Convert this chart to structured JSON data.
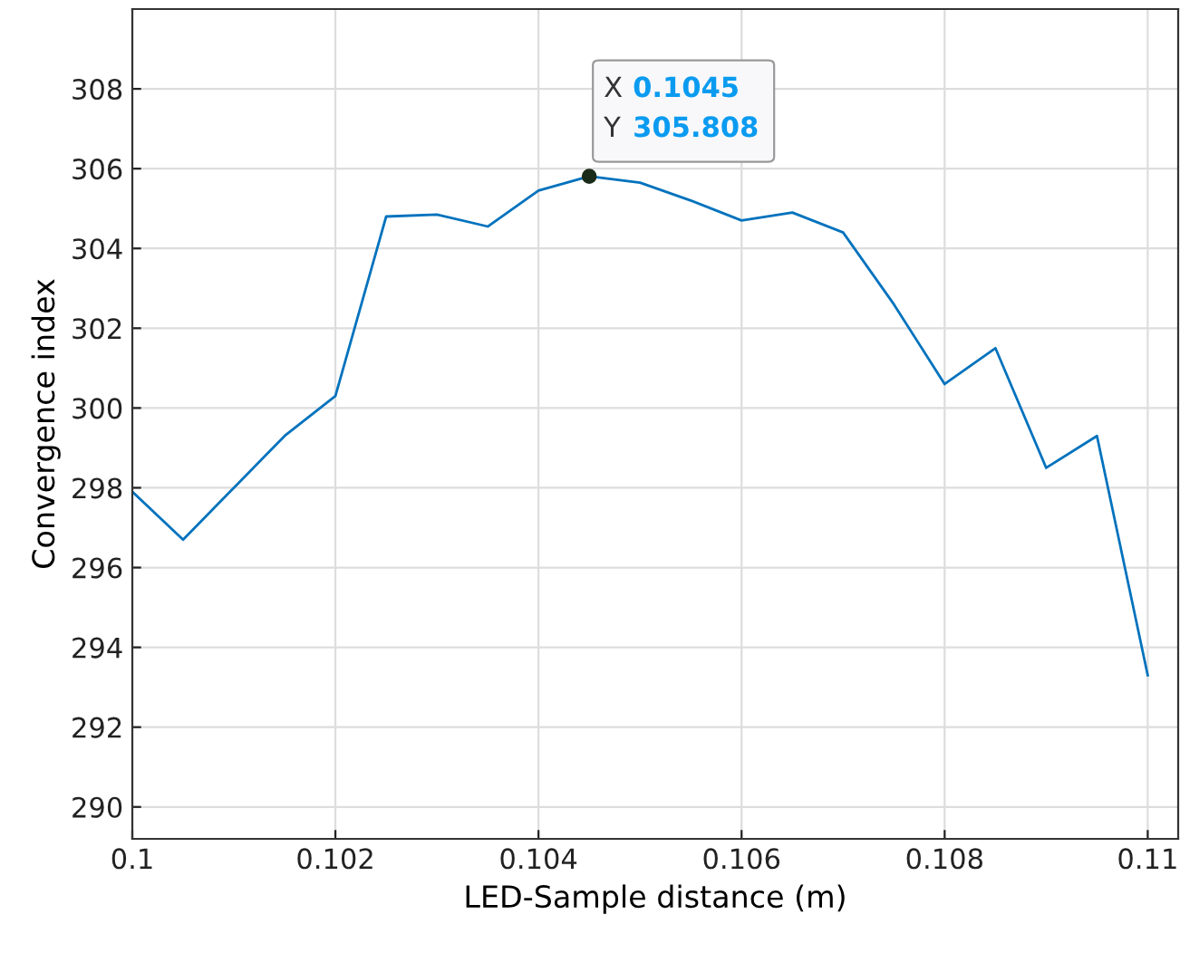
{
  "chart_data": {
    "type": "line",
    "xlabel": "LED-Sample distance (m)",
    "ylabel": "Convergence index",
    "x": [
      0.1,
      0.1005,
      0.101,
      0.1015,
      0.102,
      0.1025,
      0.103,
      0.1035,
      0.104,
      0.1045,
      0.105,
      0.1055,
      0.106,
      0.1065,
      0.107,
      0.1075,
      0.108,
      0.1085,
      0.109,
      0.1095,
      0.11
    ],
    "series": [
      {
        "color": "#0072bd",
        "values": [
          297.9,
          296.7,
          298.0,
          299.3,
          300.3,
          304.8,
          304.85,
          304.55,
          305.45,
          305.808,
          305.65,
          305.2,
          304.7,
          304.9,
          304.4,
          302.6,
          300.6,
          301.5,
          298.5,
          299.3,
          293.3
        ]
      }
    ],
    "xlim": [
      0.1,
      0.1103
    ],
    "ylim": [
      289.2,
      310
    ],
    "xticks": [
      0.1,
      0.102,
      0.104,
      0.106,
      0.108,
      0.11
    ],
    "yticks": [
      290,
      292,
      294,
      296,
      298,
      300,
      302,
      304,
      306,
      308
    ],
    "grid": true,
    "marker": "none",
    "line_style": "solid",
    "annotations": [
      {
        "text": "X 0.1045\nY 305.808",
        "x": 0.1045,
        "y": 305.808
      }
    ]
  }
}
